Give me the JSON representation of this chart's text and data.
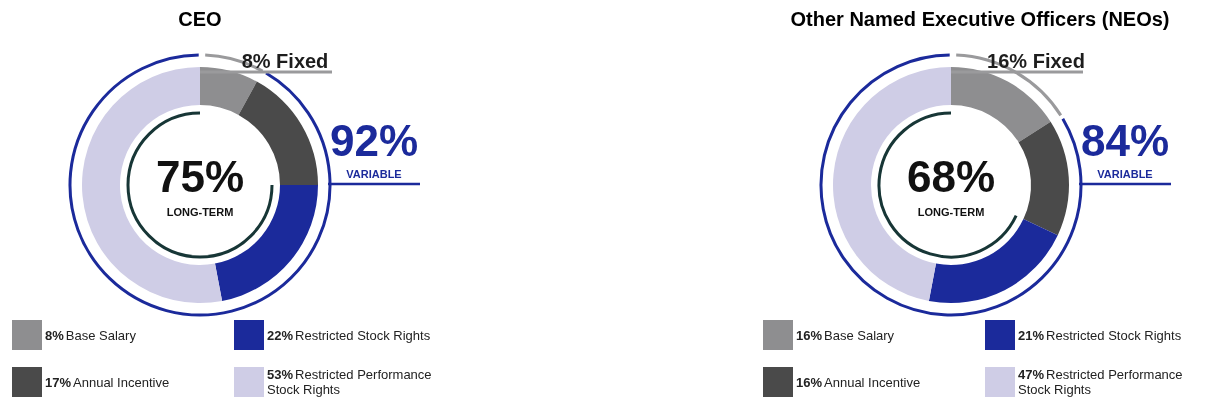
{
  "chart_data": [
    {
      "type": "donut",
      "title": "CEO",
      "categories": [
        "Base Salary",
        "Annual Incentive",
        "Restricted Stock Rights",
        "Restricted Performance Stock Rights"
      ],
      "values": [
        8,
        17,
        22,
        53
      ],
      "value_labels": [
        "8%",
        "17%",
        "22%",
        "53%"
      ],
      "colors": [
        "#8e8e90",
        "#4a4a4a",
        "#1b2a9b",
        "#cfcde6"
      ],
      "legend": "bottom",
      "annotations": [
        "8% Fixed",
        "92%",
        "VARIABLE",
        "75%",
        "LONG-TERM"
      ]
    },
    {
      "type": "donut",
      "title": "Other Named Executive Officers (NEOs)",
      "categories": [
        "Base Salary",
        "Annual Incentive",
        "Restricted Stock Rights",
        "Restricted Performance Stock Rights"
      ],
      "values": [
        16,
        16,
        21,
        47
      ],
      "value_labels": [
        "16%",
        "16%",
        "21%",
        "47%"
      ],
      "colors": [
        "#8e8e90",
        "#4a4a4a",
        "#1b2a9b",
        "#cfcde6"
      ],
      "legend": "bottom",
      "annotations": [
        "16% Fixed",
        "84%",
        "VARIABLE",
        "68%",
        "LONG-TERM"
      ]
    }
  ]
}
